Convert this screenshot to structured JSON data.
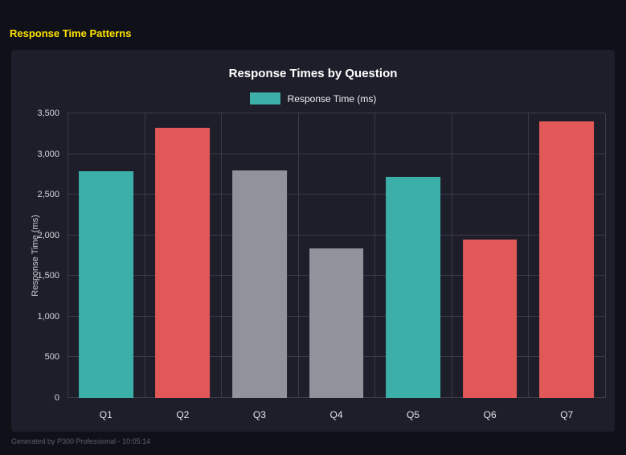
{
  "header": {
    "title": "Response Time Patterns",
    "color": "#ffe400"
  },
  "chart_data": {
    "type": "bar",
    "title": "Response Times by Question",
    "legend_label": "Response Time (ms)",
    "legend_swatch_color": "#3cafa9",
    "legend_position": "top",
    "xlabel": "",
    "ylabel": "Response Time (ms)",
    "categories": [
      "Q1",
      "Q2",
      "Q3",
      "Q4",
      "Q5",
      "Q6",
      "Q7"
    ],
    "values": [
      2790,
      3320,
      2800,
      1840,
      2720,
      1950,
      3400
    ],
    "bar_colors": [
      "#3cafa9",
      "#e25858",
      "#92929a",
      "#92929a",
      "#3cafa9",
      "#e25858",
      "#e25858"
    ],
    "colors": {
      "teal": "#3cafa9",
      "red": "#e25858",
      "gray": "#92929a"
    },
    "ylim": [
      0,
      3500
    ],
    "ytick_step": 500,
    "ytick_labels": [
      "0",
      "500",
      "1,000",
      "1,500",
      "2,000",
      "2,500",
      "3,000",
      "3,500"
    ],
    "grid": true
  },
  "footer": {
    "text": "Generated by P300 Professional - 10:05:14"
  }
}
